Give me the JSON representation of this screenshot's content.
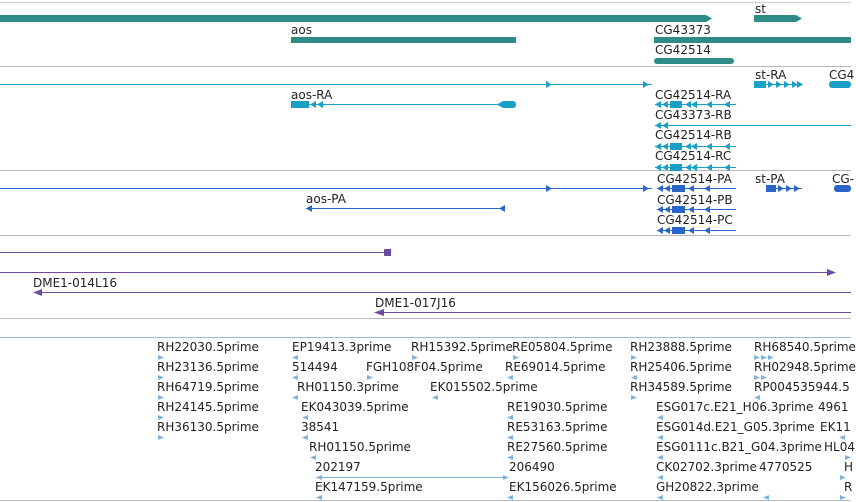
{
  "colors": {
    "gene": "#2e8b86",
    "transcript_cdna": "#1aa0c7",
    "transcript_protein": "#2a66c8",
    "clone": "#6d4c9e",
    "est": "#7fb2dd"
  },
  "genes": {
    "aos": "aos",
    "st": "st",
    "cg43373": "CG43373",
    "cg42514": "CG42514"
  },
  "transcripts_a": {
    "aos_ra": "aos-RA",
    "st_ra": "st-RA",
    "cg4_partial": "CG4",
    "cg42514_ra": "CG42514-RA",
    "cg43373_rb": "CG43373-RB",
    "cg42514_rb": "CG42514-RB",
    "cg42514_rc": "CG42514-RC"
  },
  "transcripts_p": {
    "aos_pa": "aos-PA",
    "st_pa": "st-PA",
    "cg_partial": "CG-",
    "cg42514_pa": "CG42514-PA",
    "cg42514_pb": "CG42514-PB",
    "cg42514_pc": "CG42514-PC"
  },
  "clones": {
    "dme1_014l16": "DME1-014L16",
    "dme1_017j16": "DME1-017J16"
  },
  "ests": {
    "c1": [
      "RH22030.5prime",
      "RH23136.5prime",
      "RH64719.5prime",
      "RH24145.5prime",
      "RH36130.5prime"
    ],
    "c2": [
      "EP19413.3prime",
      "514494",
      "RH01150.3prime",
      "EK043039.5prime",
      "38541",
      "RH01150.5prime",
      "202197",
      "EK147159.5prime"
    ],
    "fgh": "FGH108F04.5prime",
    "rh15392": "RH15392.5prime",
    "ek015502": "EK015502.5prime",
    "c3": [
      "RE05804.5prime",
      "RE69014.5prime",
      "RE19030.5prime",
      "RE53163.5prime",
      "RE27560.5prime",
      "206490",
      "EK156026.5prime"
    ],
    "c4": [
      "RH23888.5prime",
      "RH25406.5prime",
      "RH34589.5prime",
      "ESG017c.E21_H06.3prime",
      "ESG014d.E21_G05.3prime",
      "ESG0111c.B21_G04.3prime",
      "CK02702.3prime",
      "GH20822.3prime"
    ],
    "n4770525": "4770525",
    "c5": [
      "RH68540.5prime",
      "RH02948.5prime",
      "RP004535944.5",
      "4961",
      "EK11",
      "HL04",
      "H",
      "R"
    ]
  }
}
